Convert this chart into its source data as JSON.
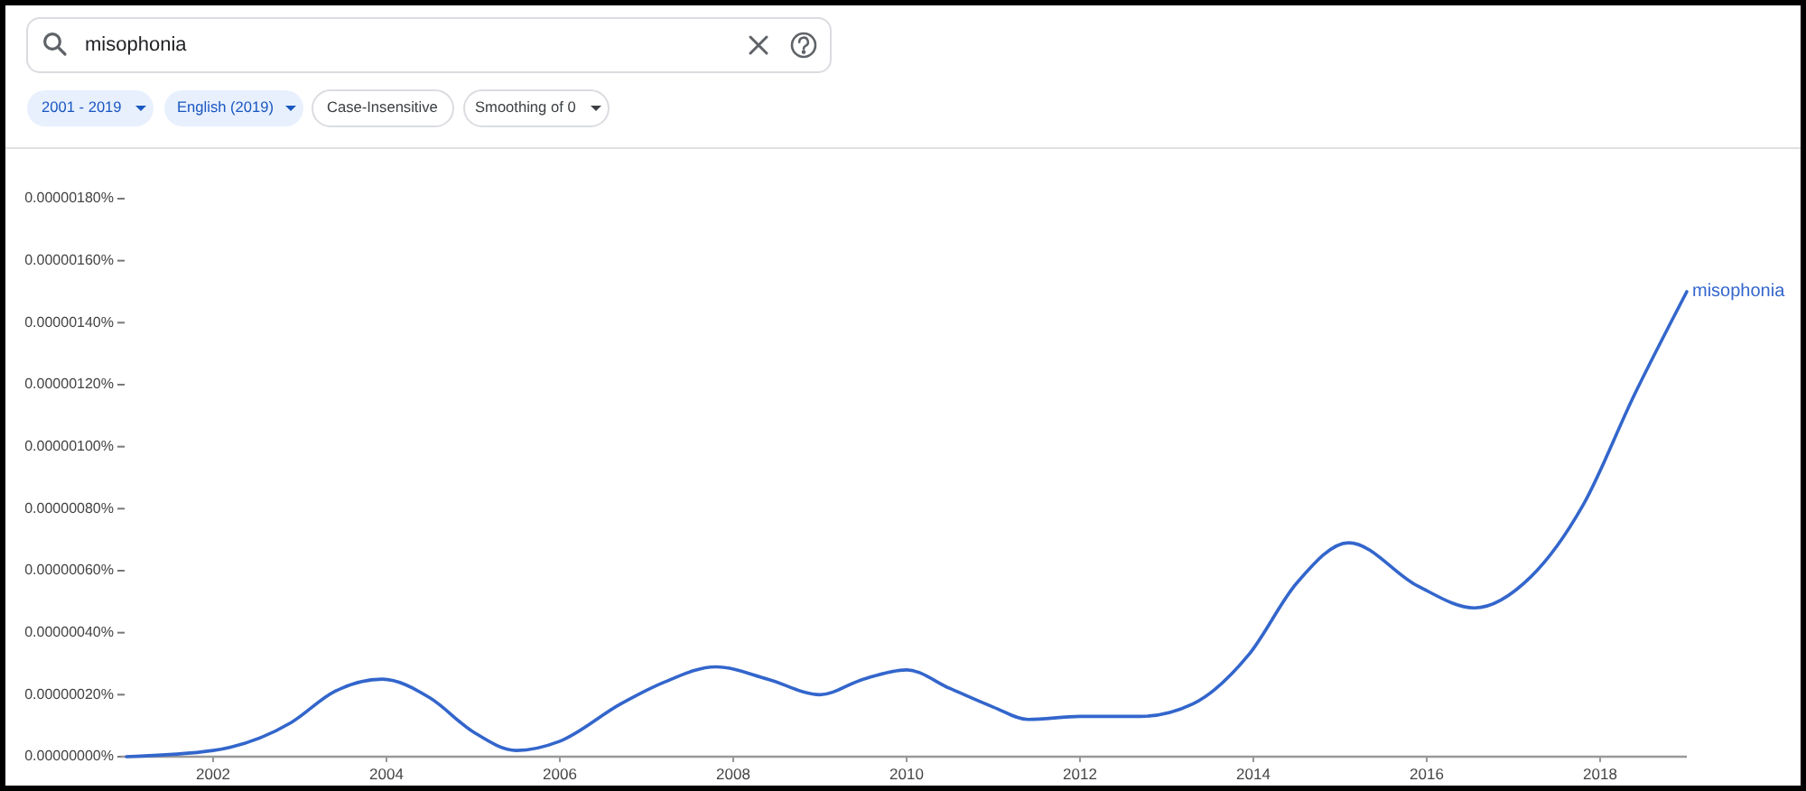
{
  "chart_data": {
    "type": "line",
    "annotations": [
      "misophonia",
      "2001 - 2019",
      "English (2019)",
      "Case-Insensitive",
      "Smoothing of 0"
    ],
    "xlim": [
      2001,
      2019
    ],
    "xticks": [
      2002,
      2004,
      2006,
      2008,
      2010,
      2012,
      2014,
      2016,
      2018
    ],
    "ylim": [
      0,
      1.8e-06
    ],
    "yticks": [
      {
        "value": 0,
        "label": "0.00000000%"
      },
      {
        "value": 2e-07,
        "label": "0.00000020%"
      },
      {
        "value": 4e-07,
        "label": "0.00000040%"
      },
      {
        "value": 6e-07,
        "label": "0.00000060%"
      },
      {
        "value": 8e-07,
        "label": "0.00000080%"
      },
      {
        "value": 1e-06,
        "label": "0.00000100%"
      },
      {
        "value": 1.2e-06,
        "label": "0.00000120%"
      },
      {
        "value": 1.4e-06,
        "label": "0.00000140%"
      },
      {
        "value": 1.6e-06,
        "label": "0.00000160%"
      },
      {
        "value": 1.8e-06,
        "label": "0.00000180%"
      }
    ],
    "series": [
      {
        "name": "misophonia",
        "color": "#3366cc",
        "x": [
          2001,
          2002,
          2002.9,
          2003.4,
          2003.95,
          2004.5,
          2005,
          2005.5,
          2006,
          2006.7,
          2007.2,
          2007.8,
          2008.4,
          2009,
          2009.5,
          2010,
          2010.5,
          2011,
          2011.4,
          2012,
          2012.7,
          2013.3,
          2013.95,
          2014.5,
          2015.1,
          2015.9,
          2016.55,
          2017.2,
          2017.8,
          2018.4,
          2019
        ],
        "values": [
          0,
          2e-08,
          1.1e-07,
          2.1e-07,
          2.5e-07,
          1.9e-07,
          8e-08,
          2e-08,
          5e-08,
          1.7e-07,
          2.4e-07,
          2.9e-07,
          2.5e-07,
          2e-07,
          2.5e-07,
          2.8e-07,
          2.2e-07,
          1.6e-07,
          1.2e-07,
          1.3e-07,
          1.3e-07,
          1.7e-07,
          3.3e-07,
          5.6e-07,
          6.9e-07,
          5.5e-07,
          4.8e-07,
          5.8e-07,
          8.1e-07,
          1.17e-06,
          1.5e-06
        ]
      }
    ]
  }
}
